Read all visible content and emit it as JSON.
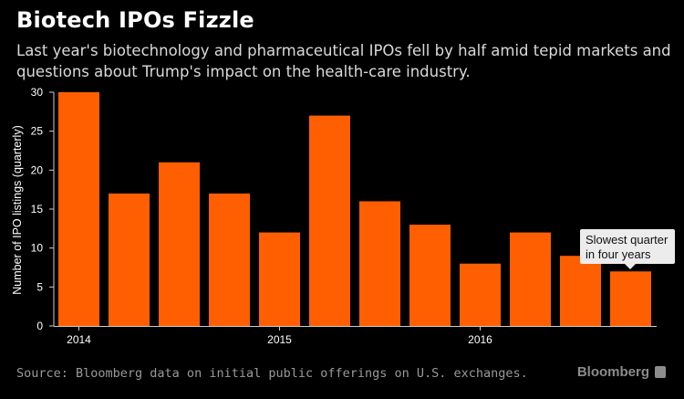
{
  "header": {
    "title": "Biotech IPOs Fizzle",
    "subtitle": "Last year's biotechnology and pharmaceutical IPOs fell by half amid tepid markets and questions about Trump's impact on the health-care industry."
  },
  "chart_data": {
    "type": "bar",
    "title": "Biotech IPOs Fizzle",
    "ylabel": "Number of IPO listings (quarterly)",
    "xlabel": "",
    "ylim": [
      0,
      30
    ],
    "yticks": [
      0,
      5,
      10,
      15,
      20,
      25,
      30
    ],
    "grid": false,
    "categories": [
      "2014 Q1",
      "2014 Q2",
      "2014 Q3",
      "2014 Q4",
      "2015 Q1",
      "2015 Q2",
      "2015 Q3",
      "2015 Q4",
      "2016 Q1",
      "2016 Q2",
      "2016 Q3",
      "2016 Q4"
    ],
    "values": [
      30,
      17,
      21,
      17,
      12,
      27,
      16,
      13,
      8,
      12,
      9,
      7
    ],
    "year_labels": [
      {
        "label": "2014",
        "category_index": 0
      },
      {
        "label": "2015",
        "category_index": 4
      },
      {
        "label": "2016",
        "category_index": 8
      }
    ],
    "bar_color": "#ff5f00",
    "annotation": {
      "lines": [
        "Slowest quarter",
        "in four years"
      ],
      "category_index": 11
    }
  },
  "footer": {
    "source": "Source: Bloomberg data on initial public offerings on U.S. exchanges.",
    "brand": "Bloomberg"
  }
}
